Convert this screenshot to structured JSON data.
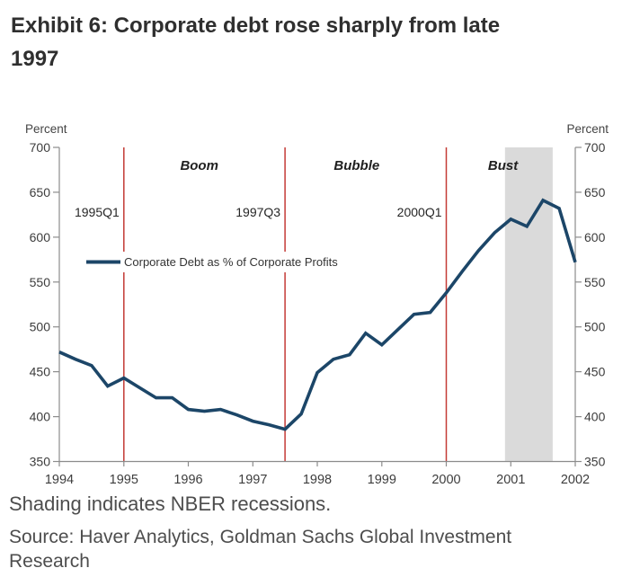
{
  "page": {
    "title": "Exhibit 6: Corporate debt rose sharply from late 1997",
    "footnote": "Shading indicates NBER recessions.",
    "source": "Source: Haver Analytics, Goldman Sachs Global Investment Research"
  },
  "chart_data": {
    "type": "line",
    "unit_label": "Percent",
    "xlabel": "",
    "ylabel": "Percent",
    "xlim": [
      1994,
      2002
    ],
    "ylim": [
      350,
      700
    ],
    "x_ticks": [
      1994,
      1995,
      1996,
      1997,
      1998,
      1999,
      2000,
      2001,
      2002
    ],
    "y_ticks": [
      700,
      650,
      600,
      550,
      500,
      450,
      400,
      350
    ],
    "grid": false,
    "legend_position": "upper-left-inside",
    "x_quarters": [
      "1994Q1",
      "1994Q2",
      "1994Q3",
      "1994Q4",
      "1995Q1",
      "1995Q2",
      "1995Q3",
      "1995Q4",
      "1996Q1",
      "1996Q2",
      "1996Q3",
      "1996Q4",
      "1997Q1",
      "1997Q2",
      "1997Q3",
      "1997Q4",
      "1998Q1",
      "1998Q2",
      "1998Q3",
      "1998Q4",
      "1999Q1",
      "1999Q2",
      "1999Q3",
      "1999Q4",
      "2000Q1",
      "2000Q2",
      "2000Q3",
      "2000Q4",
      "2001Q1",
      "2001Q2",
      "2001Q3",
      "2001Q4",
      "2002Q1"
    ],
    "series": [
      {
        "name": "Corporate Debt as % of Corporate Profits",
        "values": [
          472,
          464,
          457,
          434,
          443,
          432,
          421,
          421,
          408,
          406,
          408,
          402,
          395,
          391,
          386,
          403,
          449,
          464,
          469,
          493,
          480,
          497,
          514,
          516,
          538,
          562,
          585,
          605,
          620,
          612,
          641,
          632,
          572
        ]
      }
    ],
    "vlines": [
      {
        "year": 1995.0,
        "label": "1995Q1"
      },
      {
        "year": 1997.5,
        "label": "1997Q3"
      },
      {
        "year": 2000.0,
        "label": "2000Q1"
      }
    ],
    "phase_labels": [
      {
        "year": 1996.17,
        "label": "Boom"
      },
      {
        "year": 1998.61,
        "label": "Bubble"
      },
      {
        "year": 2000.88,
        "label": "Bust"
      }
    ],
    "recession_band": {
      "from_year": 2000.91,
      "to_year": 2001.65
    },
    "colors": {
      "line": "#1c4668",
      "vline": "#c43a35",
      "band": "#dadada",
      "axis": "#8c8c8c",
      "tick_label": "#3d3d3d",
      "annotation": "#262626"
    }
  }
}
